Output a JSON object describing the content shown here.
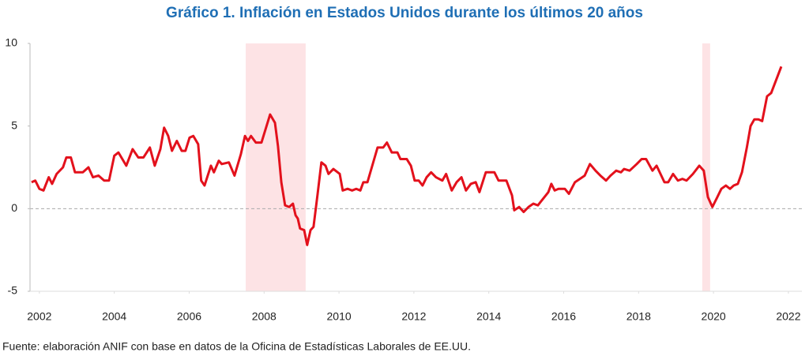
{
  "chart_data": {
    "type": "line",
    "title": "Gráfico 1. Inflación en Estados Unidos durante los últimos 20 años",
    "source": "Fuente: elaboración ANIF con base en datos de la Oficina de Estadísticas Laborales de EE.UU.",
    "color": "#e3111c",
    "x": [
      2001.79,
      2001.89,
      2002.0,
      2002.11,
      2002.25,
      2002.34,
      2002.46,
      2002.63,
      2002.72,
      2002.84,
      2002.95,
      2003.16,
      2003.31,
      2003.43,
      2003.58,
      2003.73,
      2003.86,
      2004.0,
      2004.11,
      2004.32,
      2004.49,
      2004.64,
      2004.78,
      2004.95,
      2005.08,
      2005.23,
      2005.33,
      2005.44,
      2005.54,
      2005.67,
      2005.8,
      2005.9,
      2006.01,
      2006.11,
      2006.24,
      2006.32,
      2006.41,
      2006.58,
      2006.66,
      2006.79,
      2006.87,
      2007.06,
      2007.21,
      2007.38,
      2007.49,
      2007.57,
      2007.65,
      2007.78,
      2007.93,
      2008.16,
      2008.29,
      2008.37,
      2008.46,
      2008.56,
      2008.67,
      2008.77,
      2008.84,
      2008.9,
      2008.96,
      2009.07,
      2009.15,
      2009.24,
      2009.32,
      2009.43,
      2009.53,
      2009.64,
      2009.72,
      2009.85,
      2010.02,
      2010.1,
      2010.23,
      2010.35,
      2010.46,
      2010.57,
      2010.65,
      2010.76,
      2011.03,
      2011.18,
      2011.28,
      2011.41,
      2011.56,
      2011.64,
      2011.81,
      2011.92,
      2012.02,
      2012.13,
      2012.23,
      2012.34,
      2012.46,
      2012.59,
      2012.76,
      2012.86,
      2013.01,
      2013.14,
      2013.27,
      2013.39,
      2013.52,
      2013.65,
      2013.75,
      2013.92,
      2014.15,
      2014.26,
      2014.47,
      2014.62,
      2014.68,
      2014.81,
      2014.93,
      2015.06,
      2015.19,
      2015.31,
      2015.38,
      2015.59,
      2015.67,
      2015.76,
      2015.86,
      2016.03,
      2016.14,
      2016.3,
      2016.56,
      2016.7,
      2016.85,
      2016.98,
      2017.13,
      2017.25,
      2017.4,
      2017.53,
      2017.61,
      2017.76,
      2017.95,
      2018.08,
      2018.2,
      2018.37,
      2018.48,
      2018.69,
      2018.79,
      2018.92,
      2019.05,
      2019.17,
      2019.28,
      2019.45,
      2019.62,
      2019.74,
      2019.85,
      2019.97,
      2020.08,
      2020.21,
      2020.33,
      2020.44,
      2020.54,
      2020.65,
      2020.76,
      2020.89,
      2020.99,
      2021.09,
      2021.2,
      2021.3,
      2021.43,
      2021.54,
      2021.81
    ],
    "values": [
      1.6,
      1.7,
      1.2,
      1.1,
      1.9,
      1.5,
      2.1,
      2.5,
      3.1,
      3.1,
      2.2,
      2.2,
      2.5,
      1.9,
      2.0,
      1.7,
      1.7,
      3.2,
      3.4,
      2.6,
      3.6,
      3.1,
      3.1,
      3.7,
      2.6,
      3.6,
      4.9,
      4.4,
      3.5,
      4.1,
      3.5,
      3.5,
      4.3,
      4.4,
      3.9,
      1.7,
      1.4,
      2.6,
      2.2,
      2.9,
      2.7,
      2.8,
      2.0,
      3.3,
      4.4,
      4.1,
      4.4,
      4.0,
      4.0,
      5.7,
      5.2,
      3.8,
      1.6,
      0.2,
      0.1,
      0.3,
      -0.4,
      -0.6,
      -1.2,
      -1.3,
      -2.2,
      -1.3,
      -1.1,
      0.9,
      2.8,
      2.6,
      2.1,
      2.4,
      2.1,
      1.1,
      1.2,
      1.1,
      1.2,
      1.1,
      1.6,
      1.6,
      3.7,
      3.7,
      4.0,
      3.4,
      3.4,
      3.0,
      3.0,
      2.6,
      1.7,
      1.7,
      1.4,
      1.9,
      2.2,
      1.9,
      1.7,
      2.1,
      1.1,
      1.6,
      1.9,
      1.1,
      1.5,
      1.6,
      1.0,
      2.2,
      2.2,
      1.7,
      1.7,
      0.8,
      -0.1,
      0.1,
      -0.2,
      0.1,
      0.3,
      0.2,
      0.4,
      1.0,
      1.5,
      1.1,
      1.2,
      1.2,
      0.9,
      1.6,
      2.0,
      2.7,
      2.3,
      2.0,
      1.7,
      2.0,
      2.3,
      2.2,
      2.4,
      2.3,
      2.7,
      3.0,
      3.0,
      2.3,
      2.6,
      1.6,
      1.6,
      2.1,
      1.7,
      1.8,
      1.7,
      2.1,
      2.6,
      2.3,
      0.7,
      0.1,
      0.6,
      1.2,
      1.4,
      1.2,
      1.4,
      1.5,
      2.2,
      3.7,
      5.0,
      5.4,
      5.4,
      5.3,
      6.8,
      7.0,
      8.6
    ],
    "xlim": [
      2001.75,
      2022.36
    ],
    "xticks": [
      2002,
      2004,
      2006,
      2008,
      2010,
      2012,
      2014,
      2016,
      2018,
      2020,
      2022
    ],
    "ylim": [
      -5,
      10
    ],
    "yticks": [
      -5,
      0,
      5,
      10
    ],
    "reference_line": 0,
    "shaded_color": "#fde3e5",
    "shaded_regions": [
      {
        "start": 2007.51,
        "end": 2009.11
      },
      {
        "start": 2019.7,
        "end": 2019.91
      }
    ]
  }
}
